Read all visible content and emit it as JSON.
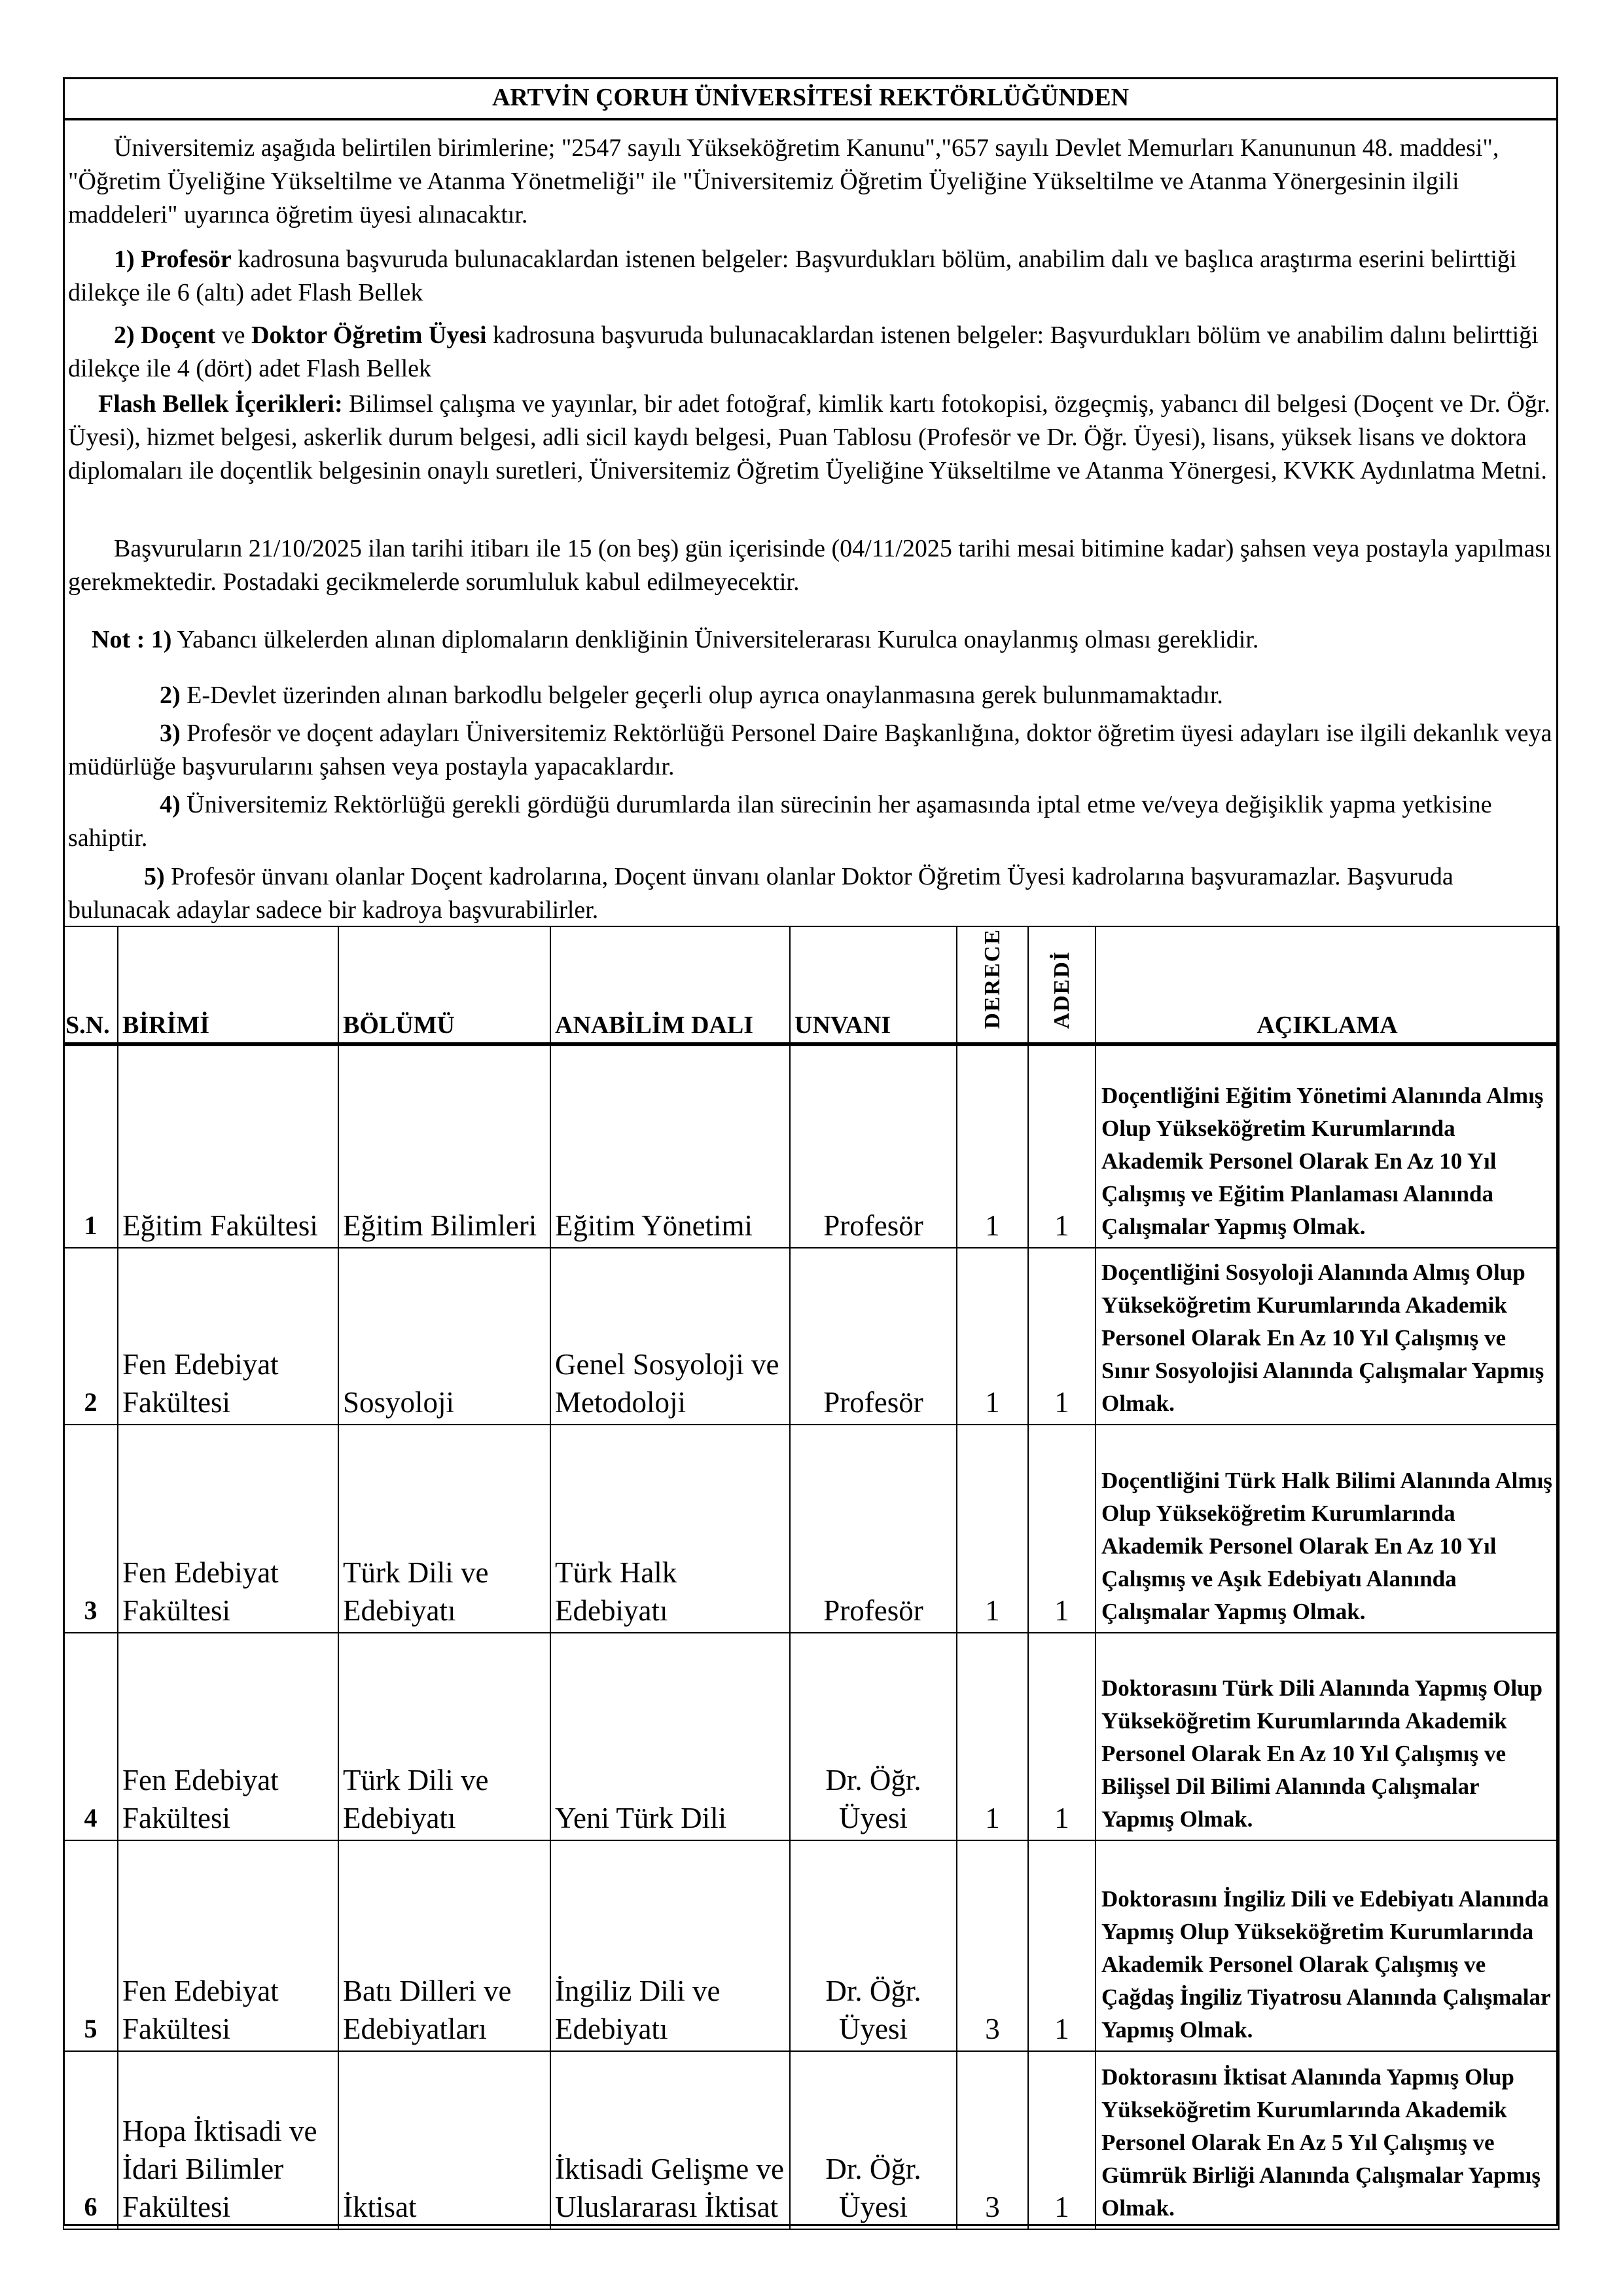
{
  "title": "ARTVİN ÇORUH ÜNİVERSİTESİ REKTÖRLÜĞÜNDEN",
  "intro": "Üniversitemiz aşağıda belirtilen birimlerine; \"2547 sayılı Yükseköğretim Kanunu\",\"657 sayılı Devlet Memurları Kanununun 48. maddesi\", \"Öğretim Üyeliğine Yükseltilme ve Atanma Yönetmeliği\" ile \"Üniversitemiz Öğretim Üyeliğine Yükseltilme ve Atanma Yönergesinin ilgili maddeleri\" uyarınca öğretim üyesi alınacaktır.",
  "p1": {
    "bold": "1) Profesör",
    "text": " kadrosuna başvuruda bulunacaklardan istenen belgeler: Başvurdukları bölüm, anabilim dalı ve başlıca araştırma eserini belirttiği dilekçe ile 6 (altı) adet Flash Bellek"
  },
  "p2": {
    "bold1": "2) Doçent",
    "mid": " ve ",
    "bold2": "Doktor Öğretim Üyesi",
    "text": " kadrosuna başvuruda bulunacaklardan istenen belgeler: Başvurdukları bölüm ve anabilim dalını belirttiği dilekçe ile 4 (dört) adet Flash Bellek"
  },
  "flash": {
    "bold": "Flash Bellek İçerikleri:",
    "text": " Bilimsel çalışma ve yayınlar, bir adet fotoğraf, kimlik kartı fotokopisi, özgeçmiş, yabancı dil belgesi (Doçent ve Dr. Öğr. Üyesi), hizmet belgesi, askerlik durum belgesi, adli sicil kaydı belgesi, Puan Tablosu (Profesör ve Dr. Öğr. Üyesi), lisans, yüksek lisans ve doktora diplomaları ile doçentlik belgesinin onaylı suretleri, Üniversitemiz Öğretim Üyeliğine Yükseltilme ve Atanma Yönergesi, KVKK Aydınlatma Metni."
  },
  "deadline": "Başvuruların 21/10/2025 ilan tarihi itibarı ile 15 (on beş) gün içerisinde (04/11/2025 tarihi mesai bitimine kadar) şahsen veya postayla yapılması gerekmektedir. Postadaki gecikmelerde sorumluluk kabul edilmeyecektir.",
  "notes": [
    {
      "bold": "Not : 1)",
      "text": " Yabancı ülkelerden alınan diplomaların denkliğinin Üniversitelerarası Kurulca onaylanmış olması gereklidir."
    },
    {
      "bold": "2)",
      "text": " E-Devlet üzerinden alınan barkodlu belgeler geçerli olup ayrıca onaylanmasına gerek bulunmamaktadır."
    },
    {
      "bold": "3)",
      "text": " Profesör ve doçent adayları Üniversitemiz Rektörlüğü Personel Daire Başkanlığına, doktor öğretim üyesi adayları ise ilgili dekanlık veya müdürlüğe başvurularını şahsen veya postayla yapacaklardır."
    },
    {
      "bold": "4)",
      "text": " Üniversitemiz Rektörlüğü gerekli gördüğü durumlarda ilan sürecinin her aşamasında iptal etme ve/veya değişiklik yapma yetkisine sahiptir."
    },
    {
      "bold": "5)",
      "text": " Profesör ünvanı olanlar Doçent kadrolarına, Doçent ünvanı olanlar Doktor Öğretim Üyesi kadrolarına başvuramazlar. Başvuruda bulunacak adaylar sadece bir kadroya başvurabilirler."
    }
  ],
  "table": {
    "headers": {
      "sn": "S.N.",
      "birim": "BİRİMİ",
      "bolum": "BÖLÜMÜ",
      "anabilim": "ANABİLİM DALI",
      "unvan": "UNVANI",
      "derece": "DERECE",
      "adet": "ADEDİ",
      "aciklama": "AÇIKLAMA"
    },
    "rows": [
      {
        "sn": "1",
        "birim": "Eğitim Fakültesi",
        "bolum": "Eğitim Bilimleri",
        "anabilim": "Eğitim Yönetimi",
        "unvan": "Profesör",
        "derece": "1",
        "adet": "1",
        "aciklama": "Doçentliğini Eğitim Yönetimi Alanında Almış Olup Yükseköğretim Kurumlarında Akademik Personel Olarak En Az 10 Yıl Çalışmış ve Eğitim Planlaması Alanında Çalışmalar Yapmış Olmak."
      },
      {
        "sn": "2",
        "birim": "Fen Edebiyat Fakültesi",
        "bolum": "Sosyoloji",
        "anabilim": "Genel Sosyoloji ve Metodoloji",
        "unvan": "Profesör",
        "derece": "1",
        "adet": "1",
        "aciklama": "Doçentliğini Sosyoloji Alanında Almış Olup Yükseköğretim Kurumlarında Akademik Personel Olarak En Az 10 Yıl Çalışmış ve Sınır Sosyolojisi Alanında Çalışmalar Yapmış Olmak."
      },
      {
        "sn": "3",
        "birim": "Fen Edebiyat Fakültesi",
        "bolum": "Türk Dili ve Edebiyatı",
        "anabilim": "Türk Halk Edebiyatı",
        "unvan": "Profesör",
        "derece": "1",
        "adet": "1",
        "aciklama": "Doçentliğini Türk Halk Bilimi Alanında Almış Olup Yükseköğretim Kurumlarında Akademik Personel Olarak En Az 10 Yıl Çalışmış ve Aşık Edebiyatı Alanında Çalışmalar Yapmış Olmak."
      },
      {
        "sn": "4",
        "birim": "Fen Edebiyat Fakültesi",
        "bolum": "Türk Dili ve Edebiyatı",
        "anabilim": "Yeni Türk Dili",
        "unvan": "Dr. Öğr. Üyesi",
        "derece": "1",
        "adet": "1",
        "aciklama": "Doktorasını Türk Dili Alanında Yapmış Olup Yükseköğretim Kurumlarında Akademik Personel Olarak En Az 10 Yıl Çalışmış ve Bilişsel Dil Bilimi Alanında Çalışmalar Yapmış Olmak."
      },
      {
        "sn": "5",
        "birim": "Fen Edebiyat Fakültesi",
        "bolum": "Batı Dilleri ve Edebiyatları",
        "anabilim": "İngiliz Dili ve Edebiyatı",
        "unvan": "Dr. Öğr. Üyesi",
        "derece": "3",
        "adet": "1",
        "aciklama": "Doktorasını İngiliz Dili ve Edebiyatı Alanında Yapmış Olup Yükseköğretim Kurumlarında Akademik Personel Olarak Çalışmış ve Çağdaş İngiliz Tiyatrosu Alanında Çalışmalar Yapmış Olmak."
      },
      {
        "sn": "6",
        "birim": "Hopa İktisadi ve İdari Bilimler Fakültesi",
        "bolum": "İktisat",
        "anabilim": "İktisadi Gelişme ve Uluslararası İktisat",
        "unvan": "Dr. Öğr. Üyesi",
        "derece": "3",
        "adet": "1",
        "aciklama": "Doktorasını İktisat Alanında Yapmış Olup Yükseköğretim Kurumlarında Akademik Personel Olarak En Az 5 Yıl Çalışmış ve Gümrük Birliği Alanında Çalışmalar Yapmış Olmak."
      }
    ]
  }
}
